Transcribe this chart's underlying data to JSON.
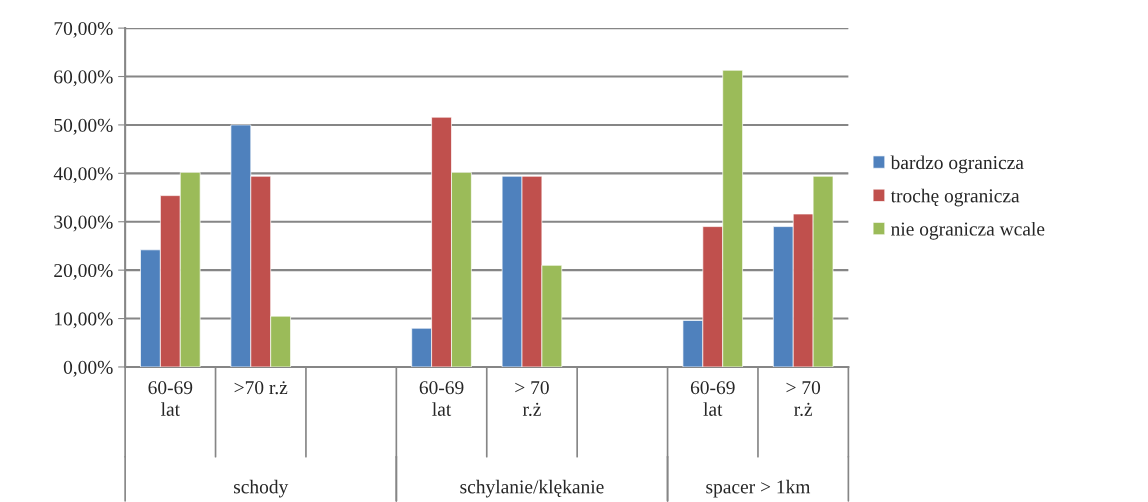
{
  "chart_data": {
    "type": "bar",
    "categories": [
      "60-69\nlat",
      ">70 r.ż",
      null,
      "60-69\nlat",
      "> 70\nr.ż",
      null,
      "60-69\nlat",
      "> 70\nr.ż"
    ],
    "series": [
      {
        "name": "bardzo ogranicza",
        "color": "#4f81bd",
        "values": [
          24.2,
          50.0,
          null,
          8.0,
          39.4,
          null,
          9.6,
          29.0
        ]
      },
      {
        "name": "trochę ogranicza",
        "color": "#c0504d",
        "values": [
          35.4,
          39.4,
          null,
          51.6,
          39.4,
          null,
          29.0,
          31.6
        ]
      },
      {
        "name": "nie ogranicza wcale",
        "color": "#9bbb59",
        "values": [
          40.2,
          10.5,
          null,
          40.2,
          21.0,
          null,
          61.3,
          39.4
        ]
      }
    ],
    "annotations": [
      "schody",
      "schylanie/klękanie",
      "spacer > 1km"
    ],
    "ylim": [
      0,
      70
    ],
    "yticks": [
      {
        "value": 0,
        "label": "0,00%"
      },
      {
        "value": 10,
        "label": "10,00%"
      },
      {
        "value": 20,
        "label": "20,00%"
      },
      {
        "value": 30,
        "label": "30,00%"
      },
      {
        "value": 40,
        "label": "40,00%"
      },
      {
        "value": 50,
        "label": "50,00%"
      },
      {
        "value": 60,
        "label": "60,00%"
      },
      {
        "value": 70,
        "label": "70,00%"
      }
    ],
    "grid": "y",
    "legend": "right"
  }
}
